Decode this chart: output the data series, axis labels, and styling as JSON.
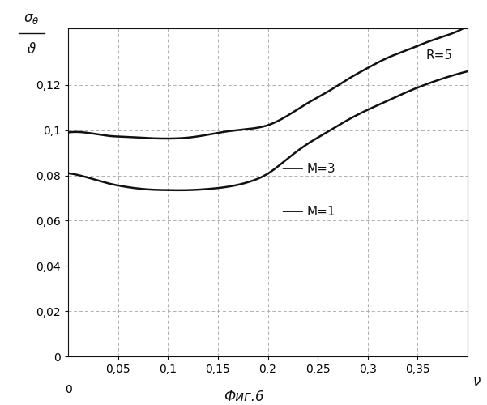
{
  "caption": "Фиг.6",
  "xlim": [
    0,
    0.4
  ],
  "ylim": [
    0,
    0.145
  ],
  "xticks": [
    0.05,
    0.1,
    0.15,
    0.2,
    0.25,
    0.3,
    0.35
  ],
  "xtick_labels": [
    "0,05",
    "0,1",
    "0,15",
    "0,2",
    "0,25",
    "0,3",
    "0,35"
  ],
  "yticks": [
    0,
    0.02,
    0.04,
    0.06,
    0.08,
    0.1,
    0.12
  ],
  "ytick_labels": [
    "0",
    "0,02",
    "0,04",
    "0,06",
    "0,08",
    "0,1",
    "0,12"
  ],
  "grid_color": "#b0b0b0",
  "line_color": "#111111",
  "background": "#ffffff",
  "curve_R5_x": [
    0.0,
    0.02,
    0.04,
    0.06,
    0.08,
    0.1,
    0.12,
    0.14,
    0.16,
    0.18,
    0.2,
    0.22,
    0.24,
    0.26,
    0.28,
    0.3,
    0.32,
    0.34,
    0.36,
    0.38,
    0.4
  ],
  "curve_R5_y": [
    0.099,
    0.0988,
    0.0975,
    0.097,
    0.0965,
    0.0963,
    0.0967,
    0.098,
    0.0995,
    0.1005,
    0.1022,
    0.1065,
    0.112,
    0.117,
    0.1225,
    0.1275,
    0.132,
    0.1355,
    0.139,
    0.142,
    0.146
  ],
  "curve_M3_x": [
    0.0,
    0.02,
    0.04,
    0.06,
    0.08,
    0.1,
    0.12,
    0.14,
    0.16,
    0.18,
    0.2,
    0.22,
    0.24,
    0.26,
    0.28,
    0.3,
    0.32,
    0.34,
    0.36,
    0.38,
    0.4
  ],
  "curve_M3_y": [
    0.081,
    0.079,
    0.0765,
    0.0748,
    0.0738,
    0.0735,
    0.0735,
    0.074,
    0.075,
    0.077,
    0.0808,
    0.0875,
    0.094,
    0.0993,
    0.1045,
    0.109,
    0.113,
    0.117,
    0.1205,
    0.1235,
    0.126
  ],
  "label_R5": "R=5",
  "label_M3": "M=3",
  "label_M1": "M=1",
  "figsize": [
    6.01,
    5.0
  ],
  "dpi": 100,
  "linewidth": 1.8
}
